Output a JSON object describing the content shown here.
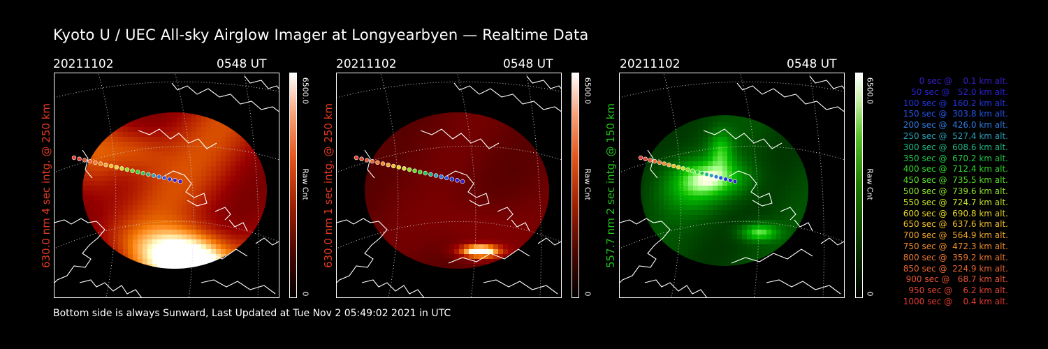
{
  "title": "Kyoto U / UEC All-sky Airglow Imager at Longyearbyen — Realtime Data",
  "footer": "Bottom side is always Sunward, Last Updated at Tue Nov  2 05:49:02 2021 in UTC",
  "panels": [
    {
      "date": "20211102",
      "time": "0548 UT",
      "ylabel": "630.0 nm 4 sec intg. @ 250 km",
      "label_color": "#e23a22",
      "colorbar_max": "6500.0",
      "colorbar_min": "0",
      "colorbar_label": "Raw Cnt",
      "colormap": "red"
    },
    {
      "date": "20211102",
      "time": "0548 UT",
      "ylabel": "630.0 nm 1 sec intg. @ 250 km",
      "label_color": "#e23a22",
      "colorbar_max": "6500.0",
      "colorbar_min": "0",
      "colorbar_label": "Raw Cnt",
      "colormap": "red"
    },
    {
      "date": "20211102",
      "time": "0548 UT",
      "ylabel": "557.7 nm 2 sec intg. @ 150 km",
      "label_color": "#22c41a",
      "colorbar_max": "6500.0",
      "colorbar_min": "0",
      "colorbar_label": "Raw Cnt",
      "colormap": "green"
    }
  ],
  "legend": [
    {
      "text": "   0 sec @    0.1 km alt.",
      "color": "#3b1dc9"
    },
    {
      "text": "  50 sec @   52.0 km alt.",
      "color": "#2b22d6"
    },
    {
      "text": " 100 sec @  160.2 km alt.",
      "color": "#2236e0"
    },
    {
      "text": " 150 sec @  303.8 km alt.",
      "color": "#2255e6"
    },
    {
      "text": " 200 sec @  426.0 km alt.",
      "color": "#2f7be0"
    },
    {
      "text": " 250 sec @  527.4 km alt.",
      "color": "#2aa0b8"
    },
    {
      "text": " 300 sec @  608.6 km alt.",
      "color": "#20b888"
    },
    {
      "text": " 350 sec @  670.2 km alt.",
      "color": "#22c94a"
    },
    {
      "text": " 400 sec @  712.4 km alt.",
      "color": "#2fd82a"
    },
    {
      "text": " 450 sec @  735.5 km alt.",
      "color": "#58e02a"
    },
    {
      "text": " 500 sec @  739.6 km alt.",
      "color": "#8ee42a"
    },
    {
      "text": " 550 sec @  724.7 km alt.",
      "color": "#c8e22a"
    },
    {
      "text": " 600 sec @  690.8 km alt.",
      "color": "#e8d82a"
    },
    {
      "text": " 650 sec @  637.6 km alt.",
      "color": "#f0c02a"
    },
    {
      "text": " 700 sec @  564.9 km alt.",
      "color": "#f2a62c"
    },
    {
      "text": " 750 sec @  472.3 km alt.",
      "color": "#f08e2e"
    },
    {
      "text": " 800 sec @  359.2 km alt.",
      "color": "#ee7a30"
    },
    {
      "text": " 850 sec @  224.9 km alt.",
      "color": "#ea6632"
    },
    {
      "text": " 900 sec @   68.7 km alt.",
      "color": "#e85434"
    },
    {
      "text": " 950 sec @    6.2 km alt.",
      "color": "#e64434"
    },
    {
      "text": "1000 sec @    0.4 km alt.",
      "color": "#e43a32"
    }
  ]
}
